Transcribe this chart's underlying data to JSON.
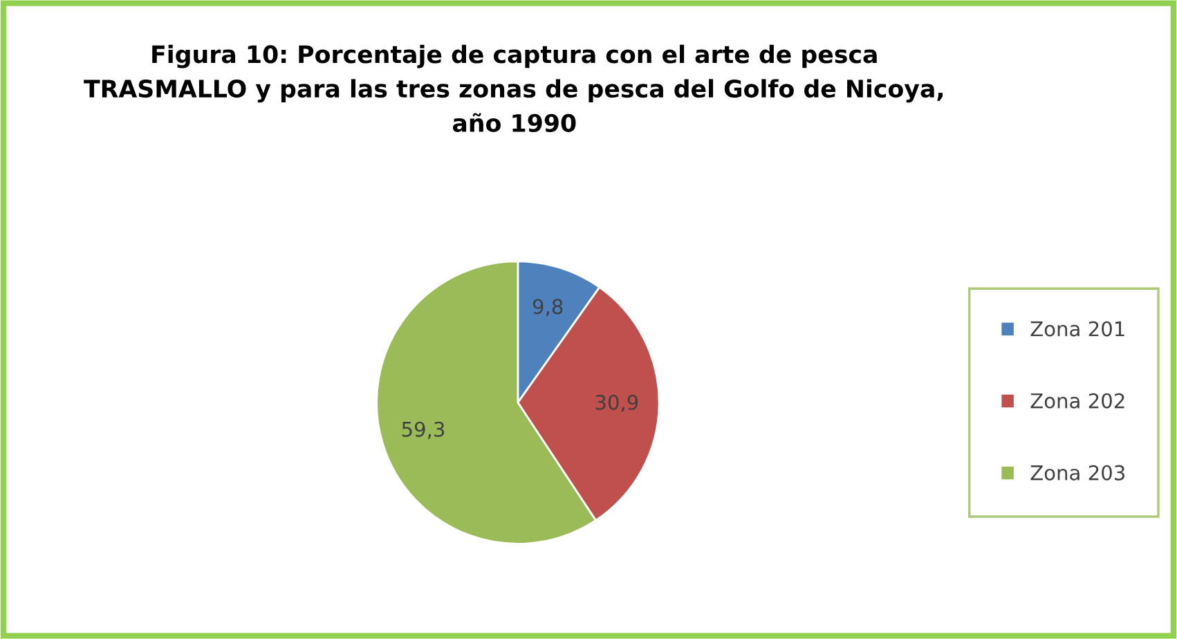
{
  "chart_data": {
    "type": "pie",
    "title": "Figura 10: Porcentaje de captura con el arte de pesca\nTRASMALLO y para las tres zonas de pesca del Golfo de Nicoya,\naño 1990",
    "categories": [
      "Zona 201",
      "Zona 202",
      "Zona 203"
    ],
    "values": [
      9.8,
      30.9,
      59.3
    ],
    "value_labels": [
      "9,8",
      "30,9",
      "59,3"
    ],
    "colors": [
      "#4f81bd",
      "#c0504d",
      "#9bbb59"
    ],
    "legend": "right"
  }
}
